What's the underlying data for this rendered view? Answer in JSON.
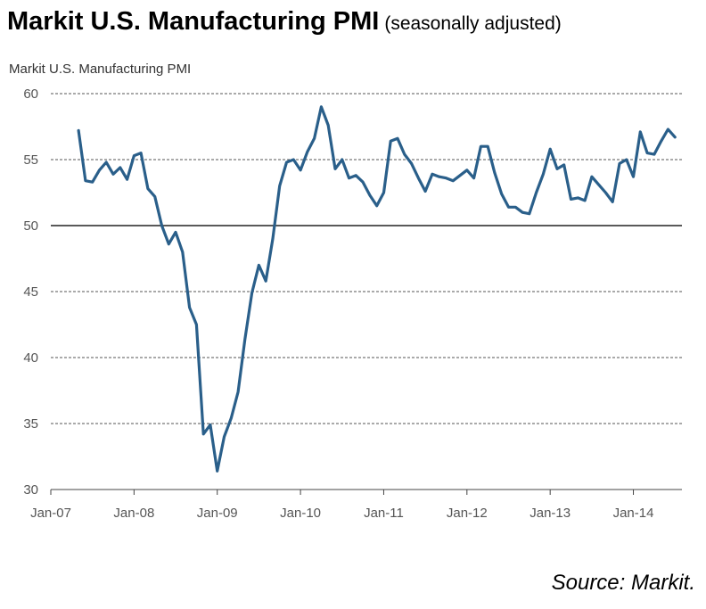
{
  "header": {
    "title": "Markit U.S. Manufacturing PMI",
    "subtitle": "(seasonally adjusted)"
  },
  "footer": {
    "source": "Source: Markit."
  },
  "chart_data": {
    "type": "line",
    "title": "Markit U.S. Manufacturing PMI",
    "subtitle": "(seasonally adjusted)",
    "ylabel": "Markit U.S. Manufacturing  PMI",
    "xlabel": "",
    "ylim": [
      30,
      60
    ],
    "yticks": [
      30,
      35,
      40,
      45,
      50,
      55,
      60
    ],
    "xticks": [
      "Jan-07",
      "Jan-08",
      "Jan-09",
      "Jan-10",
      "Jan-11",
      "Jan-12",
      "Jan-13",
      "Jan-14"
    ],
    "grid": true,
    "line_color": "#2a5f8a",
    "series": [
      {
        "name": "",
        "x": [
          "2007-05",
          "2007-06",
          "2007-07",
          "2007-08",
          "2007-09",
          "2007-10",
          "2007-11",
          "2007-12",
          "2008-01",
          "2008-02",
          "2008-03",
          "2008-04",
          "2008-05",
          "2008-06",
          "2008-07",
          "2008-08",
          "2008-09",
          "2008-10",
          "2008-11",
          "2008-12",
          "2009-01",
          "2009-02",
          "2009-03",
          "2009-04",
          "2009-05",
          "2009-06",
          "2009-07",
          "2009-08",
          "2009-09",
          "2009-10",
          "2009-11",
          "2009-12",
          "2010-01",
          "2010-02",
          "2010-03",
          "2010-04",
          "2010-05",
          "2010-06",
          "2010-07",
          "2010-08",
          "2010-09",
          "2010-10",
          "2010-11",
          "2010-12",
          "2011-01",
          "2011-02",
          "2011-03",
          "2011-04",
          "2011-05",
          "2011-06",
          "2011-07",
          "2011-08",
          "2011-09",
          "2011-10",
          "2011-11",
          "2011-12",
          "2012-01",
          "2012-02",
          "2012-03",
          "2012-04",
          "2012-05",
          "2012-06",
          "2012-07",
          "2012-08",
          "2012-09",
          "2012-10",
          "2012-11",
          "2012-12",
          "2013-01",
          "2013-02",
          "2013-03",
          "2013-04",
          "2013-05",
          "2013-06",
          "2013-07",
          "2013-08",
          "2013-09",
          "2013-10",
          "2013-11",
          "2013-12",
          "2014-01",
          "2014-02",
          "2014-03",
          "2014-04",
          "2014-05",
          "2014-06",
          "2014-07"
        ],
        "values": [
          57.2,
          53.4,
          53.3,
          54.2,
          54.8,
          53.9,
          54.4,
          53.5,
          55.3,
          55.5,
          52.8,
          52.2,
          50.0,
          48.6,
          49.5,
          48.0,
          43.8,
          42.5,
          34.2,
          34.9,
          31.4,
          34.0,
          35.4,
          37.4,
          41.4,
          44.9,
          47.0,
          45.8,
          49.0,
          53.0,
          54.8,
          55.0,
          54.2,
          55.6,
          56.6,
          59.0,
          57.6,
          54.3,
          55.0,
          53.6,
          53.8,
          53.3,
          52.3,
          51.5,
          52.5,
          56.4,
          56.6,
          55.4,
          54.7,
          53.6,
          52.6,
          53.9,
          53.7,
          53.6,
          53.4,
          53.8,
          54.2,
          53.6,
          56.0,
          56.0,
          54.0,
          52.4,
          51.4,
          51.4,
          51.0,
          50.9,
          52.5,
          53.9,
          55.8,
          54.3,
          54.6,
          52.0,
          52.1,
          51.9,
          53.7,
          53.1,
          52.5,
          51.8,
          54.7,
          55.0,
          53.7,
          57.1,
          55.5,
          55.4,
          56.4,
          57.3,
          56.7
        ]
      }
    ]
  }
}
